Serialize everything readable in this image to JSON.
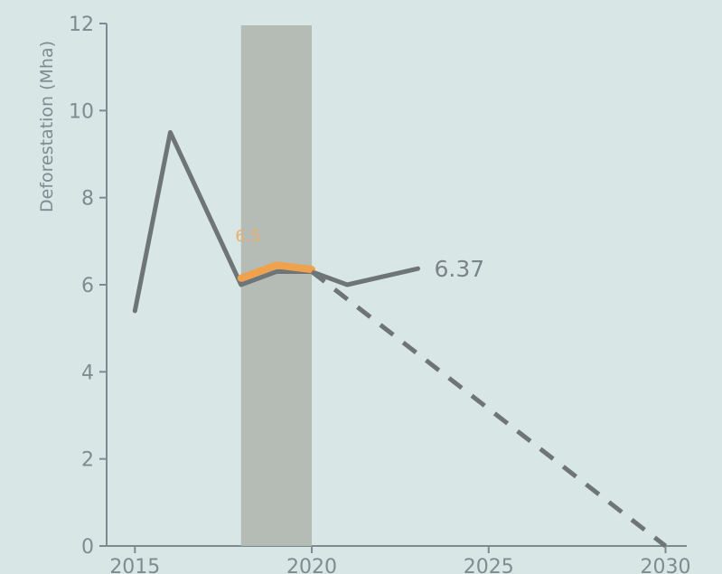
{
  "chart_data": {
    "type": "line",
    "title": "",
    "ylabel": "Deforestation (Mha)",
    "xlabel": "",
    "xlim": [
      2014.2,
      2030.6
    ],
    "ylim": [
      0,
      12
    ],
    "x_ticks": [
      2015,
      2020,
      2025,
      2030
    ],
    "y_ticks": [
      0,
      2,
      4,
      6,
      8,
      10,
      12
    ],
    "highlight_band": {
      "x_start": 2018,
      "x_end": 2020
    },
    "series": [
      {
        "name": "observed",
        "style": "solid",
        "color": "#6f7477",
        "x": [
          2015,
          2016,
          2018,
          2019,
          2020,
          2021,
          2023
        ],
        "y": [
          5.4,
          9.5,
          6.0,
          6.3,
          6.3,
          6.0,
          6.37
        ]
      },
      {
        "name": "orange_overlay",
        "style": "solid",
        "color": "#f0a14b",
        "x": [
          2018,
          2019,
          2020
        ],
        "y": [
          6.15,
          6.45,
          6.35
        ]
      },
      {
        "name": "target_path",
        "style": "dashed",
        "color": "#6f7477",
        "x": [
          2020,
          2030
        ],
        "y": [
          6.3,
          0
        ]
      }
    ],
    "annotations": [
      {
        "text": "6.37",
        "x": 2023,
        "y": 6.37,
        "color": "#7b8488"
      },
      {
        "text": "6.5",
        "x": 2018.2,
        "y": 7.0,
        "color": "#e7b06d"
      }
    ]
  }
}
